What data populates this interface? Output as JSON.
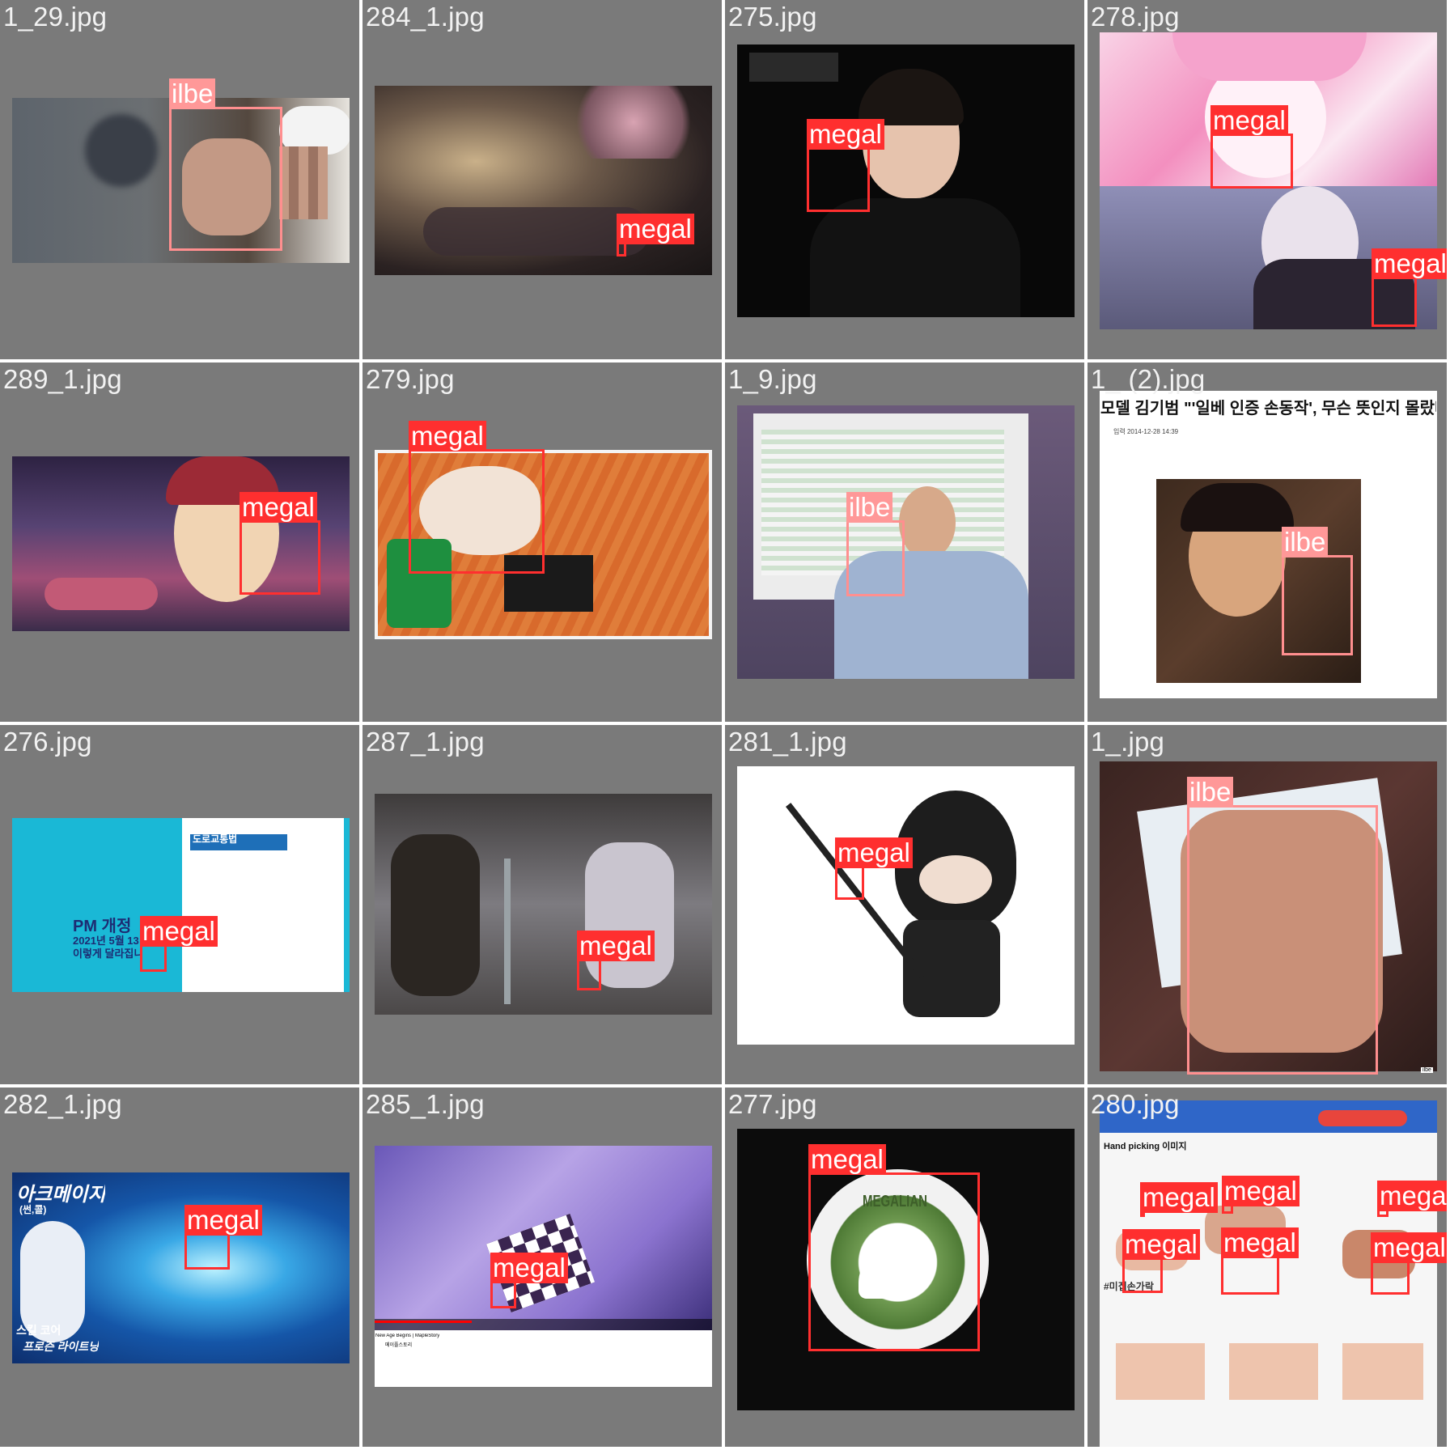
{
  "colors": {
    "megal": "#ff2f2f",
    "ilbe": "#ff9898",
    "tile_background": "#7a7a7a",
    "filename_text": "#f2f2f2"
  },
  "tiles": [
    {
      "filename": "1_29.jpg",
      "detections": [
        {
          "label": "ilbe"
        }
      ]
    },
    {
      "filename": "284_1.jpg",
      "detections": [
        {
          "label": "megal"
        }
      ]
    },
    {
      "filename": "275.jpg",
      "detections": [
        {
          "label": "megal"
        }
      ]
    },
    {
      "filename": "278.jpg",
      "detections": [
        {
          "label": "megal"
        },
        {
          "label": "megal"
        }
      ]
    },
    {
      "filename": "289_1.jpg",
      "detections": [
        {
          "label": "megal"
        }
      ]
    },
    {
      "filename": "279.jpg",
      "detections": [
        {
          "label": "megal"
        }
      ]
    },
    {
      "filename": "1_9.jpg",
      "detections": [
        {
          "label": "ilbe"
        }
      ]
    },
    {
      "filename": "1_ (2).jpg",
      "detections": [
        {
          "label": "ilbe"
        }
      ],
      "headline": "모델 김기범 \"'일베 인증 손동작', 무슨 뜻인지 몰랐다\"",
      "byline": "입력 2014-12-28 14:39"
    },
    {
      "filename": "276.jpg",
      "detections": [
        {
          "label": "megal"
        }
      ],
      "poster_title": "PM 개정",
      "poster_date": "2021년 5월 13",
      "poster_sub": "이렇게 달라집니다",
      "panel_title": "도로교통법"
    },
    {
      "filename": "287_1.jpg",
      "detections": [
        {
          "label": "megal"
        }
      ]
    },
    {
      "filename": "281_1.jpg",
      "detections": [
        {
          "label": "megal"
        }
      ]
    },
    {
      "filename": "1_.jpg",
      "detections": [
        {
          "label": "ilbe"
        }
      ],
      "corner_watermark": "ilbe"
    },
    {
      "filename": "282_1.jpg",
      "detections": [
        {
          "label": "megal"
        }
      ],
      "game_title": "아크메이지",
      "game_subtitle": "(썬,콜)",
      "skill_line1": "스킬 코어",
      "skill_line2": "프로즌 라이트닝"
    },
    {
      "filename": "285_1.jpg",
      "detections": [
        {
          "label": "megal"
        }
      ],
      "video_title": "New Age Begins | MapleStory",
      "channel": "메이플스토리"
    },
    {
      "filename": "277.jpg",
      "detections": [
        {
          "label": "megal"
        }
      ],
      "logo_text": "MEGALIAN"
    },
    {
      "filename": "280.jpg",
      "detections": [
        {
          "label": "megal"
        },
        {
          "label": "megal"
        },
        {
          "label": "megal"
        },
        {
          "label": "megal"
        },
        {
          "label": "megal"
        },
        {
          "label": "megal"
        }
      ],
      "section_title": "Hand picking 이미지",
      "tag_text": "#미집손가락"
    }
  ]
}
